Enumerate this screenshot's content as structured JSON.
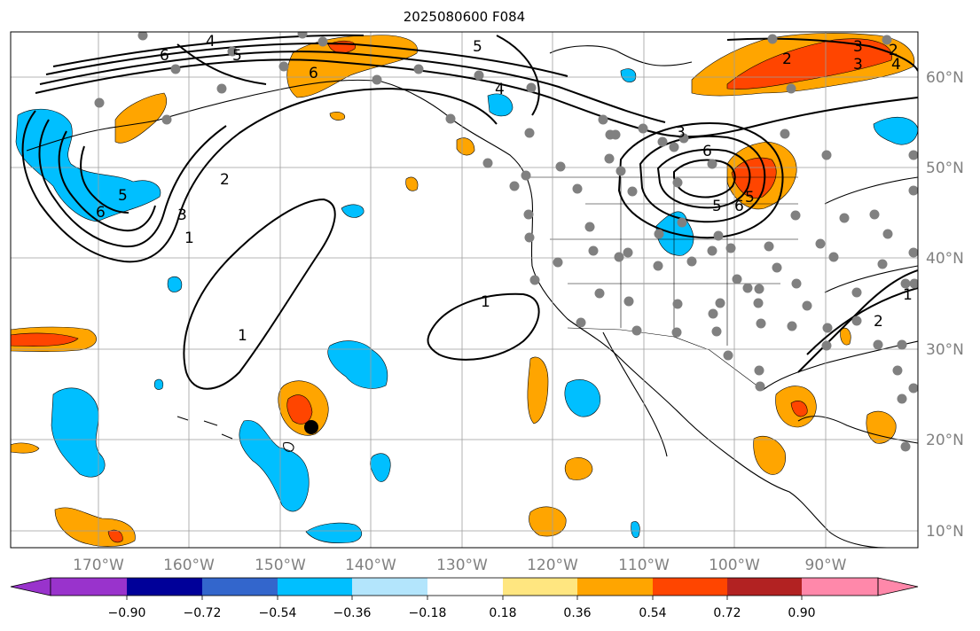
{
  "title": "2025080600 F084",
  "longitude_labels": [
    "170°W",
    "160°W",
    "150°W",
    "140°W",
    "130°W",
    "120°W",
    "110°W",
    "100°W",
    "90°W"
  ],
  "latitude_labels": [
    "60°N",
    "50°N",
    "40°N",
    "30°N",
    "20°N",
    "10°N"
  ],
  "contour_labels": [
    "6",
    "4",
    "5",
    "5",
    "4",
    "6",
    "2",
    "3",
    "2",
    "3",
    "4",
    "5",
    "6",
    "2",
    "3",
    "1",
    "5",
    "6",
    "3",
    "6",
    "5",
    "1",
    "1",
    "2",
    "1"
  ],
  "colorbar": {
    "tick_labels": [
      "−0.90",
      "−0.72",
      "−0.54",
      "−0.36",
      "−0.18",
      "0.18",
      "0.36",
      "0.54",
      "0.72",
      "0.90"
    ],
    "colors": [
      "#9933cc",
      "#000099",
      "#3366cc",
      "#00bfff",
      "#b3e5fc",
      "#ffffff",
      "#ffe680",
      "#ffa500",
      "#ff4500",
      "#b22222",
      "#ff88aa"
    ]
  },
  "colors": {
    "blue_fill": "#00bfff",
    "orange_fill": "#ffa500",
    "red_fill": "#ff4500",
    "station_marker": "#808080"
  }
}
